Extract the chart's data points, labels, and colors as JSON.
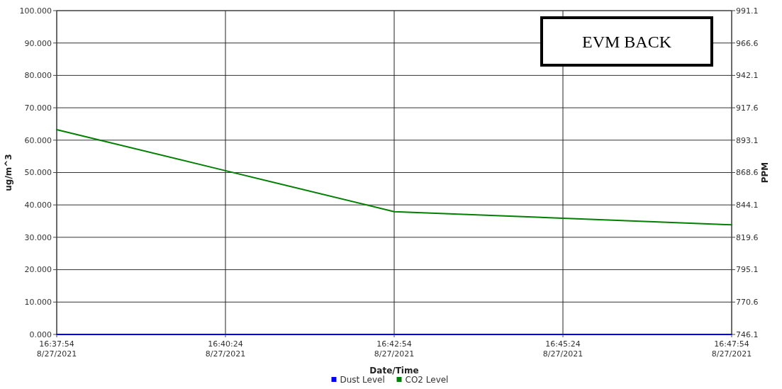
{
  "chart_data": {
    "type": "line",
    "xlabel": "Date/Time",
    "ylabel": "ug/m^3",
    "y2label": "PPM",
    "annotations": [
      "EVM BACK"
    ],
    "x": [
      "2021-08-27T16:37:54",
      "2021-08-27T16:40:24",
      "2021-08-27T16:42:54",
      "2021-08-27T16:45:24",
      "2021-08-27T16:47:54"
    ],
    "series": [
      {
        "name": "Dust Level",
        "color": "#0000ff",
        "values": [
          0,
          0,
          0,
          0,
          0
        ]
      },
      {
        "name": "CO2 Level",
        "color": "#008000",
        "axis": "y2",
        "values": [
          901,
          870,
          839,
          834,
          829
        ]
      }
    ],
    "xlim": [
      "2021-08-27T16:37:54",
      "2021-08-27T16:47:54"
    ],
    "xticks": [
      {
        "value": "2021-08-27T16:37:54",
        "label": "16:37:54\n8/27/2021"
      },
      {
        "value": "2021-08-27T16:40:24",
        "label": "16:40:24\n8/27/2021"
      },
      {
        "value": "2021-08-27T16:42:54",
        "label": "16:42:54\n8/27/2021"
      },
      {
        "value": "2021-08-27T16:45:24",
        "label": "16:45:24\n8/27/2021"
      },
      {
        "value": "2021-08-27T16:47:54",
        "label": "16:47:54\n8/27/2021"
      }
    ],
    "ylim": [
      0,
      100
    ],
    "yticks": [
      {
        "value": 0,
        "label": "0.000"
      },
      {
        "value": 10,
        "label": "10.000"
      },
      {
        "value": 20,
        "label": "20.000"
      },
      {
        "value": 30,
        "label": "30.000"
      },
      {
        "value": 40,
        "label": "40.000"
      },
      {
        "value": 50,
        "label": "50.000"
      },
      {
        "value": 60,
        "label": "60.000"
      },
      {
        "value": 70,
        "label": "70.000"
      },
      {
        "value": 80,
        "label": "80.000"
      },
      {
        "value": 90,
        "label": "90.000"
      },
      {
        "value": 100,
        "label": "100.000"
      }
    ],
    "y2lim": [
      746.1,
      991.1
    ],
    "y2ticks": [
      746.1,
      770.6,
      795.1,
      819.6,
      844.1,
      868.6,
      893.1,
      917.6,
      942.1,
      966.6,
      991.1
    ],
    "grid": true,
    "legend": "bottom",
    "marker": "none",
    "line_style": "solid"
  }
}
